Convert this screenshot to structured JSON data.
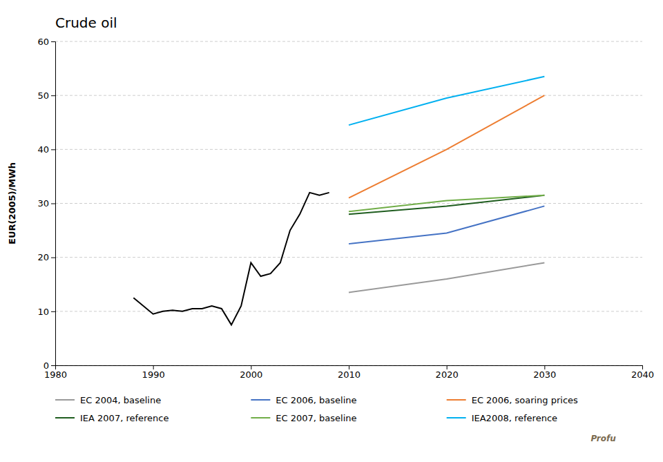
{
  "chart_data": {
    "type": "line",
    "title": "Crude oil",
    "ylabel": "EUR(2005)/MWh",
    "xlim": [
      1980,
      2040
    ],
    "ylim": [
      0,
      60
    ],
    "xticks": [
      1980,
      1990,
      2000,
      2010,
      2020,
      2030,
      2040
    ],
    "yticks": [
      0,
      10,
      20,
      30,
      40,
      50,
      60
    ],
    "grid": "y",
    "legend": "bottom",
    "annotations": [
      "Profu"
    ],
    "series": [
      {
        "color": "#000000",
        "x": [
          1988,
          1990,
          1991,
          1992,
          1993,
          1994,
          1995,
          1996,
          1997,
          1998,
          1999,
          2000,
          2001,
          2002,
          2003,
          2004,
          2005,
          2006,
          2007,
          2008
        ],
        "values": [
          12.5,
          9.5,
          10.0,
          10.2,
          10.0,
          10.5,
          10.5,
          11.0,
          10.5,
          7.5,
          11.0,
          19.0,
          16.5,
          17.0,
          19.0,
          25.0,
          28.0,
          32.0,
          31.5,
          32.0
        ]
      },
      {
        "name": "EC 2004, baseline",
        "color": "#999999",
        "x": [
          2010,
          2020,
          2030
        ],
        "values": [
          13.5,
          16.0,
          19.0
        ]
      },
      {
        "name": "EC 2006, baseline",
        "color": "#4472c4",
        "x": [
          2010,
          2020,
          2030
        ],
        "values": [
          22.5,
          24.5,
          29.5
        ]
      },
      {
        "name": "EC 2006, soaring prices",
        "color": "#ed7d31",
        "x": [
          2010,
          2020,
          2030
        ],
        "values": [
          31.0,
          40.0,
          50.0
        ]
      },
      {
        "name": "IEA 2007, reference",
        "color": "#1e5c1e",
        "x": [
          2010,
          2020,
          2030
        ],
        "values": [
          28.0,
          29.5,
          31.5
        ]
      },
      {
        "name": "EC 2007, baseline",
        "color": "#70ad47",
        "x": [
          2010,
          2020,
          2030
        ],
        "values": [
          28.5,
          30.5,
          31.5
        ]
      },
      {
        "name": "IEA2008, reference",
        "color": "#00b0f0",
        "x": [
          2010,
          2020,
          2030
        ],
        "values": [
          44.5,
          49.5,
          53.5
        ]
      }
    ]
  }
}
